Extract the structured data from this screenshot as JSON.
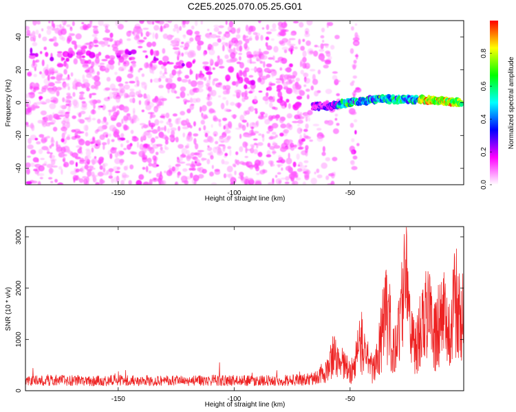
{
  "title": "C2E5.2025.070.05.25.G01",
  "chart_data": [
    {
      "type": "heatmap",
      "xlabel": "Height of straight line (km)",
      "ylabel": "Frequency (Hz)",
      "xlim": [
        -190,
        -1
      ],
      "ylim": [
        -50,
        50
      ],
      "x_ticks": [
        -150,
        -100,
        -50
      ],
      "y_ticks": [
        40,
        20,
        0,
        -20,
        -40
      ],
      "colorbar": {
        "label": "Normalized spectral amplitude",
        "range": [
          0,
          1
        ],
        "ticks": [
          "0.0",
          "0.2",
          "0.4",
          "0.6",
          "0.8"
        ],
        "stops": [
          "#ffffff",
          "#ff00ff",
          "#0000ff",
          "#00ffff",
          "#00ff00",
          "#ffff00",
          "#ff0000"
        ]
      },
      "ridge": {
        "description_points_x": [
          -190,
          -175,
          -160,
          -140,
          -125,
          -110,
          -95,
          -80,
          -70,
          -60,
          -50,
          -40,
          -30,
          -20,
          -10,
          -2
        ],
        "description_points_y": [
          30,
          27,
          30,
          30,
          23,
          19,
          13,
          5,
          -2,
          -2,
          0,
          2,
          2,
          2,
          1,
          0
        ],
        "peak_amplitude_x_range": [
          -20,
          -2
        ]
      }
    },
    {
      "type": "line",
      "xlabel": "Height of straight line (km)",
      "ylabel": "SNR (10 * v/v)",
      "xlim": [
        -190,
        -1
      ],
      "ylim": [
        0,
        3200
      ],
      "x_ticks": [
        -150,
        -100,
        -50
      ],
      "y_ticks": [
        0,
        1000,
        2000,
        3000
      ],
      "series": [
        {
          "color": "#ee2222",
          "x": [
            -190,
            -180,
            -170,
            -160,
            -150,
            -140,
            -130,
            -120,
            -110,
            -100,
            -90,
            -80,
            -70,
            -65,
            -60,
            -58,
            -55,
            -52,
            -50,
            -47,
            -45,
            -42,
            -40,
            -38,
            -36,
            -34,
            -32,
            -30,
            -28,
            -26,
            -24,
            -22,
            -20,
            -18,
            -16,
            -14,
            -12,
            -10,
            -8,
            -6,
            -4,
            -2,
            -1
          ],
          "values": [
            200,
            210,
            220,
            200,
            215,
            205,
            210,
            200,
            215,
            210,
            205,
            215,
            220,
            260,
            450,
            900,
            700,
            650,
            400,
            900,
            1200,
            700,
            500,
            900,
            1600,
            2000,
            1300,
            900,
            2100,
            3100,
            1500,
            1100,
            1400,
            1700,
            2000,
            1300,
            1600,
            1900,
            1500,
            2000,
            2200,
            1700,
            1900
          ]
        }
      ]
    }
  ]
}
